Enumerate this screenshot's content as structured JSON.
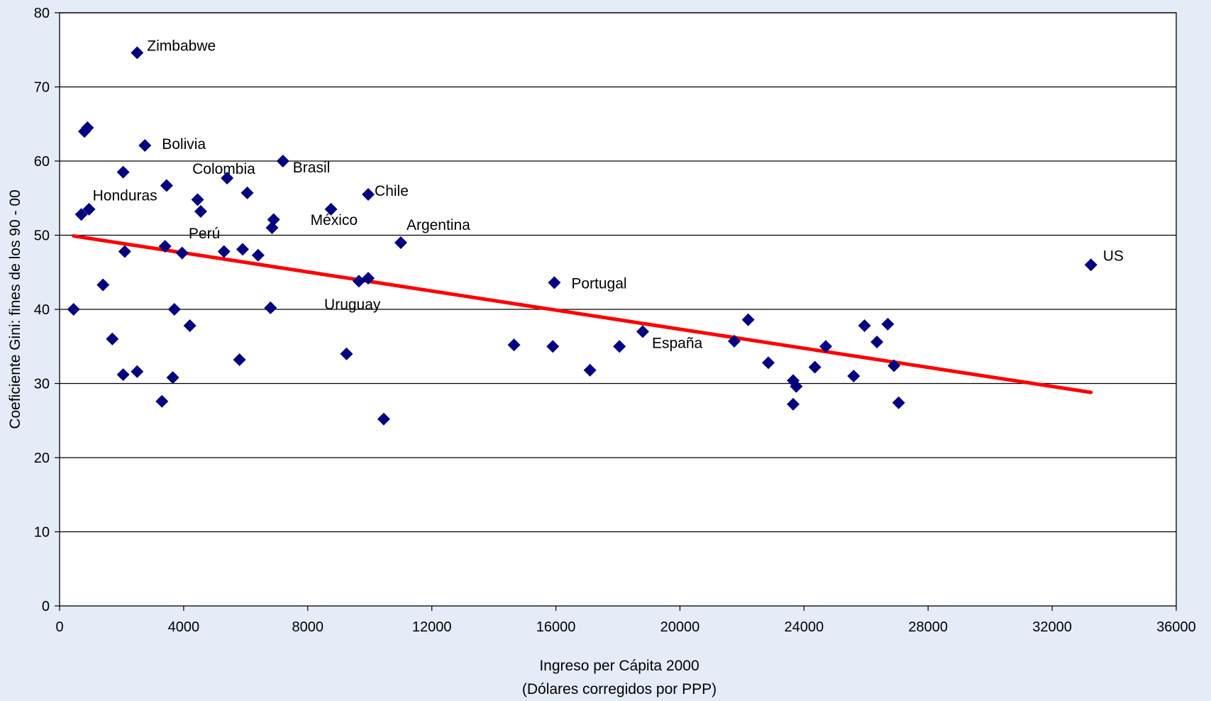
{
  "chart_data": {
    "type": "scatter",
    "title": "",
    "xlabel": "Ingreso per Cápita 2000",
    "xlabel_line2": "(Dólares corregidos por PPP)",
    "ylabel": "Coeficiente Gini: fines de los 90 - 00",
    "xlim": [
      0,
      36000
    ],
    "ylim": [
      0,
      80
    ],
    "x_ticks": [
      0,
      4000,
      8000,
      12000,
      16000,
      20000,
      24000,
      28000,
      32000,
      36000
    ],
    "y_ticks": [
      0,
      10,
      20,
      30,
      40,
      50,
      60,
      70,
      80
    ],
    "grid": "horizontal",
    "legend": "none",
    "colors": {
      "points": "#000080",
      "trend": "#ff0000",
      "plot_bg": "#ffffff",
      "page_bg": "#e3ecf7"
    },
    "points": [
      {
        "x": 450,
        "y": 40.0
      },
      {
        "x": 700,
        "y": 52.8
      },
      {
        "x": 800,
        "y": 64.0
      },
      {
        "x": 900,
        "y": 64.5
      },
      {
        "x": 950,
        "y": 53.5
      },
      {
        "x": 1400,
        "y": 43.3
      },
      {
        "x": 1700,
        "y": 36.0
      },
      {
        "x": 2050,
        "y": 31.2
      },
      {
        "x": 2050,
        "y": 58.5,
        "label": "Honduras"
      },
      {
        "x": 2100,
        "y": 47.8
      },
      {
        "x": 2500,
        "y": 74.6,
        "label": "Zimbabwe"
      },
      {
        "x": 2500,
        "y": 31.6
      },
      {
        "x": 2750,
        "y": 62.1,
        "label": "Bolivia"
      },
      {
        "x": 3300,
        "y": 27.6
      },
      {
        "x": 3400,
        "y": 48.5
      },
      {
        "x": 3450,
        "y": 56.7
      },
      {
        "x": 3650,
        "y": 30.8
      },
      {
        "x": 3700,
        "y": 40.0
      },
      {
        "x": 3950,
        "y": 47.6
      },
      {
        "x": 4200,
        "y": 37.8
      },
      {
        "x": 4450,
        "y": 54.8
      },
      {
        "x": 4550,
        "y": 53.2,
        "label": "Perú"
      },
      {
        "x": 5300,
        "y": 47.8
      },
      {
        "x": 5400,
        "y": 57.7,
        "label": "Colombia"
      },
      {
        "x": 5800,
        "y": 33.2
      },
      {
        "x": 5900,
        "y": 48.1
      },
      {
        "x": 6050,
        "y": 55.7
      },
      {
        "x": 6400,
        "y": 47.3
      },
      {
        "x": 6800,
        "y": 40.2
      },
      {
        "x": 6850,
        "y": 51.0
      },
      {
        "x": 6900,
        "y": 52.1
      },
      {
        "x": 7200,
        "y": 60.0,
        "label": "Brasil"
      },
      {
        "x": 8750,
        "y": 53.5,
        "label": "México"
      },
      {
        "x": 9250,
        "y": 34.0
      },
      {
        "x": 9650,
        "y": 43.8
      },
      {
        "x": 9950,
        "y": 44.2,
        "label": "Uruguay"
      },
      {
        "x": 9950,
        "y": 55.5,
        "label": "Chile"
      },
      {
        "x": 10450,
        "y": 25.2
      },
      {
        "x": 11000,
        "y": 49.0,
        "label": "Argentina"
      },
      {
        "x": 14650,
        "y": 35.2
      },
      {
        "x": 15900,
        "y": 35.0
      },
      {
        "x": 15950,
        "y": 43.6,
        "label": "Portugal"
      },
      {
        "x": 17100,
        "y": 31.8
      },
      {
        "x": 18050,
        "y": 35.0
      },
      {
        "x": 18800,
        "y": 37.0,
        "label": "España"
      },
      {
        "x": 21750,
        "y": 35.7
      },
      {
        "x": 22200,
        "y": 38.6
      },
      {
        "x": 22850,
        "y": 32.8
      },
      {
        "x": 23650,
        "y": 30.4
      },
      {
        "x": 23650,
        "y": 27.2
      },
      {
        "x": 23750,
        "y": 29.6
      },
      {
        "x": 24350,
        "y": 32.2
      },
      {
        "x": 24700,
        "y": 35.0
      },
      {
        "x": 25600,
        "y": 31.0
      },
      {
        "x": 25950,
        "y": 37.8
      },
      {
        "x": 26350,
        "y": 35.6
      },
      {
        "x": 26700,
        "y": 38.0
      },
      {
        "x": 26900,
        "y": 32.4
      },
      {
        "x": 27050,
        "y": 27.4
      },
      {
        "x": 33250,
        "y": 46.0,
        "label": "US"
      }
    ],
    "trendline": {
      "x": [
        450,
        33250
      ],
      "y": [
        49.9,
        28.8
      ]
    }
  }
}
